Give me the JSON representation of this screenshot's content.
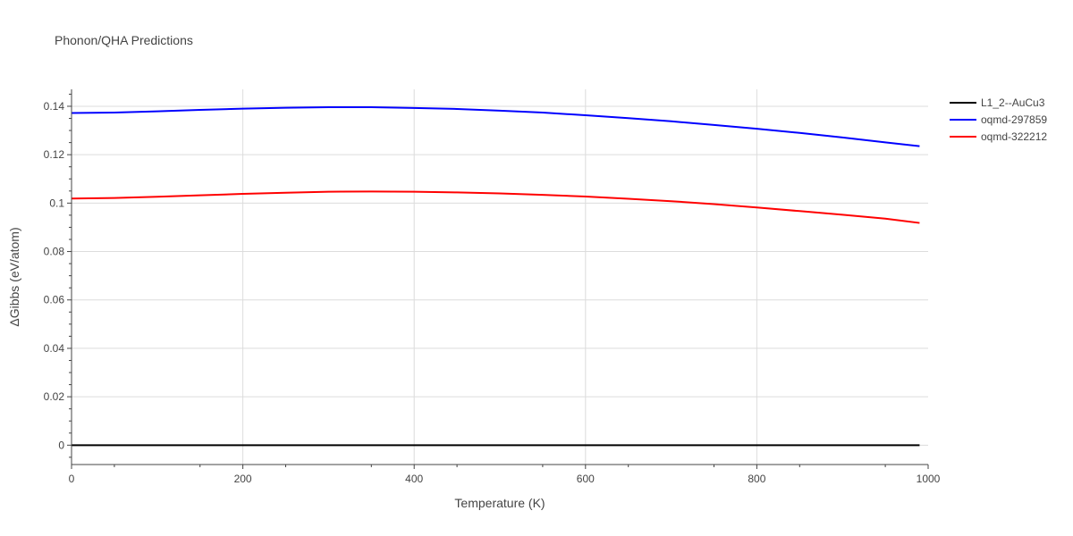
{
  "chart_data": {
    "type": "line",
    "title": "Phonon/QHA Predictions",
    "xlabel": "Temperature (K)",
    "ylabel": "ΔGibbs (eV/atom)",
    "xlim": [
      0,
      1000
    ],
    "ylim": [
      -0.008,
      0.147
    ],
    "x_ticks": [
      0,
      200,
      400,
      600,
      800,
      1000
    ],
    "x_tick_labels": [
      "0",
      "200",
      "400",
      "600",
      "800",
      "1000"
    ],
    "y_ticks": [
      0,
      0.02,
      0.04,
      0.06,
      0.08,
      0.1,
      0.12,
      0.14
    ],
    "y_tick_labels": [
      "0",
      "0.02",
      "0.04",
      "0.06",
      "0.08",
      "0.1",
      "0.12",
      "0.14"
    ],
    "grid": true,
    "legend_position": "top-right",
    "series": [
      {
        "name": "L1_2--AuCu3",
        "color": "#000000",
        "x": [
          0,
          100,
          200,
          300,
          400,
          500,
          600,
          700,
          800,
          900,
          990
        ],
        "y": [
          0,
          0,
          0,
          0,
          0,
          0,
          0,
          0,
          0,
          0,
          0
        ]
      },
      {
        "name": "oqmd-297859",
        "color": "#0000ff",
        "x": [
          0,
          50,
          100,
          150,
          200,
          250,
          300,
          350,
          400,
          450,
          500,
          550,
          600,
          650,
          700,
          750,
          800,
          850,
          900,
          950,
          990
        ],
        "y": [
          0.1372,
          0.1374,
          0.1379,
          0.1385,
          0.139,
          0.1394,
          0.1396,
          0.1396,
          0.1393,
          0.1389,
          0.1382,
          0.1374,
          0.1363,
          0.1351,
          0.1338,
          0.1323,
          0.1307,
          0.129,
          0.1271,
          0.1251,
          0.1235
        ]
      },
      {
        "name": "oqmd-322212",
        "color": "#ff0000",
        "x": [
          0,
          50,
          100,
          150,
          200,
          250,
          300,
          350,
          400,
          450,
          500,
          550,
          600,
          650,
          700,
          750,
          800,
          850,
          900,
          950,
          990
        ],
        "y": [
          0.1019,
          0.1021,
          0.1026,
          0.1032,
          0.1038,
          0.1043,
          0.1047,
          0.1048,
          0.1047,
          0.1044,
          0.104,
          0.1034,
          0.1027,
          0.1018,
          0.1008,
          0.0996,
          0.0982,
          0.0967,
          0.0952,
          0.0936,
          0.0918
        ]
      }
    ]
  }
}
